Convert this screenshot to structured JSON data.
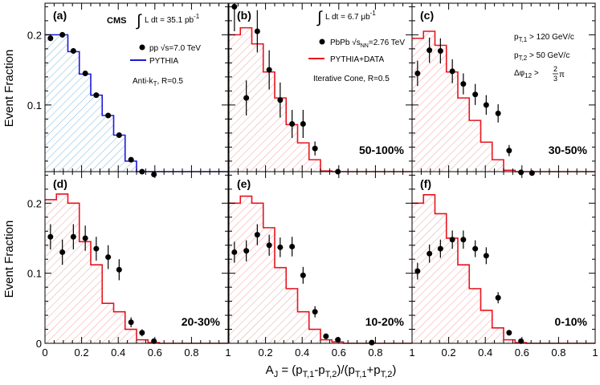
{
  "chart_data": {
    "type": "histogram-grid",
    "ylabel": "Event Fraction",
    "xlabel": "A_J = (p_T,1 - p_T,2)/(p_T,1 + p_T,2)",
    "xlabel_parts": {
      "a": "A",
      "a_sub": "J",
      "eq": " = (p",
      "t1": "T,1",
      "mid": "-p",
      "t2": "T,2",
      "mid2": ")/(p",
      "t3": "T,1",
      "plus": "+p",
      "t4": "T,2",
      "end": ")"
    },
    "xlim": [
      0,
      1
    ],
    "ylim": [
      0,
      0.245
    ],
    "x_ticks": [
      {
        "v": 0,
        "label": "0"
      },
      {
        "v": 0.2,
        "label": "0.2"
      },
      {
        "v": 0.4,
        "label": "0.4"
      },
      {
        "v": 0.6,
        "label": "0.6"
      },
      {
        "v": 0.8,
        "label": "0.8"
      },
      {
        "v": 1,
        "label": "1"
      }
    ],
    "y_ticks_top": [
      {
        "v": 0.1,
        "label": "0.1"
      },
      {
        "v": 0.2,
        "label": "0.2"
      }
    ],
    "y_ticks_bottom": [
      {
        "v": 0,
        "label": "0"
      },
      {
        "v": 0.1,
        "label": "0.1"
      },
      {
        "v": 0.2,
        "label": "0.2"
      }
    ],
    "bin_edges": [
      0,
      0.0625,
      0.125,
      0.1875,
      0.25,
      0.3125,
      0.375,
      0.4375,
      0.5,
      0.5625,
      0.625,
      0.6875,
      0.75,
      0.8125,
      0.875,
      0.9375,
      1.0
    ],
    "panels": [
      {
        "label": "(a)",
        "centrality": "",
        "mc_color": "#1a1ad9",
        "mc_hatch": "blue",
        "mc": [
          0.2,
          0.2,
          0.176,
          0.144,
          0.114,
          0.085,
          0.057,
          0.02,
          0.005,
          0.001,
          0,
          0,
          0,
          0,
          0,
          0
        ],
        "data": [
          {
            "x": 0.03,
            "y": 0.195,
            "err": 0.004
          },
          {
            "x": 0.095,
            "y": 0.2,
            "err": 0.004
          },
          {
            "x": 0.155,
            "y": 0.177,
            "err": 0.004
          },
          {
            "x": 0.22,
            "y": 0.145,
            "err": 0.004
          },
          {
            "x": 0.28,
            "y": 0.114,
            "err": 0.003
          },
          {
            "x": 0.345,
            "y": 0.085,
            "err": 0.003
          },
          {
            "x": 0.405,
            "y": 0.057,
            "err": 0.003
          },
          {
            "x": 0.47,
            "y": 0.022,
            "err": 0.002
          },
          {
            "x": 0.53,
            "y": 0.005,
            "err": 0.001
          },
          {
            "x": 0.595,
            "y": 0.001,
            "err": 0.0005
          }
        ]
      },
      {
        "label": "(b)",
        "centrality": "50-100%",
        "mc_color": "#e8141e",
        "mc_hatch": "red",
        "mc": [
          0.2,
          0.21,
          0.187,
          0.147,
          0.11,
          0.072,
          0.046,
          0.022,
          0.006,
          0.002,
          0,
          0,
          0,
          0,
          0,
          0
        ],
        "data": [
          {
            "x": 0.03,
            "y": 0.24,
            "err": 0.035
          },
          {
            "x": 0.095,
            "y": 0.11,
            "err": 0.025
          },
          {
            "x": 0.155,
            "y": 0.205,
            "err": 0.03
          },
          {
            "x": 0.22,
            "y": 0.15,
            "err": 0.028
          },
          {
            "x": 0.28,
            "y": 0.107,
            "err": 0.025
          },
          {
            "x": 0.345,
            "y": 0.073,
            "err": 0.02
          },
          {
            "x": 0.405,
            "y": 0.073,
            "err": 0.02
          },
          {
            "x": 0.47,
            "y": 0.038,
            "err": 0.01
          },
          {
            "x": 0.595,
            "y": 0.005,
            "err": 0.003
          }
        ]
      },
      {
        "label": "(c)",
        "centrality": "30-50%",
        "mc_color": "#e8141e",
        "mc_hatch": "red",
        "mc": [
          0.195,
          0.205,
          0.185,
          0.147,
          0.11,
          0.078,
          0.047,
          0.022,
          0.007,
          0.002,
          0,
          0,
          0,
          0,
          0,
          0
        ],
        "data": [
          {
            "x": 0.03,
            "y": 0.145,
            "err": 0.018
          },
          {
            "x": 0.095,
            "y": 0.178,
            "err": 0.018
          },
          {
            "x": 0.155,
            "y": 0.177,
            "err": 0.018
          },
          {
            "x": 0.22,
            "y": 0.148,
            "err": 0.017
          },
          {
            "x": 0.28,
            "y": 0.13,
            "err": 0.015
          },
          {
            "x": 0.345,
            "y": 0.115,
            "err": 0.015
          },
          {
            "x": 0.405,
            "y": 0.1,
            "err": 0.014
          },
          {
            "x": 0.47,
            "y": 0.088,
            "err": 0.013
          },
          {
            "x": 0.53,
            "y": 0.035,
            "err": 0.008
          },
          {
            "x": 0.595,
            "y": 0.004,
            "err": 0.003
          },
          {
            "x": 0.655,
            "y": 0.003,
            "err": 0.002
          }
        ]
      },
      {
        "label": "(d)",
        "centrality": "20-30%",
        "mc_color": "#e8141e",
        "mc_hatch": "red",
        "mc": [
          0.205,
          0.213,
          0.2,
          0.145,
          0.112,
          0.057,
          0.045,
          0.02,
          0.005,
          0.001,
          0,
          0,
          0,
          0,
          0,
          0
        ],
        "data": [
          {
            "x": 0.03,
            "y": 0.152,
            "err": 0.018
          },
          {
            "x": 0.095,
            "y": 0.13,
            "err": 0.018
          },
          {
            "x": 0.155,
            "y": 0.152,
            "err": 0.018
          },
          {
            "x": 0.22,
            "y": 0.15,
            "err": 0.018
          },
          {
            "x": 0.28,
            "y": 0.135,
            "err": 0.017
          },
          {
            "x": 0.345,
            "y": 0.123,
            "err": 0.017
          },
          {
            "x": 0.405,
            "y": 0.105,
            "err": 0.015
          },
          {
            "x": 0.47,
            "y": 0.03,
            "err": 0.007
          },
          {
            "x": 0.53,
            "y": 0.015,
            "err": 0.005
          },
          {
            "x": 0.595,
            "y": 0.003,
            "err": 0.002
          }
        ]
      },
      {
        "label": "(e)",
        "centrality": "10-20%",
        "mc_color": "#e8141e",
        "mc_hatch": "red",
        "mc": [
          0.2,
          0.21,
          0.2,
          0.165,
          0.108,
          0.078,
          0.045,
          0.02,
          0.005,
          0.002,
          0,
          0,
          0,
          0,
          0,
          0
        ],
        "data": [
          {
            "x": 0.03,
            "y": 0.13,
            "err": 0.015
          },
          {
            "x": 0.095,
            "y": 0.132,
            "err": 0.015
          },
          {
            "x": 0.155,
            "y": 0.155,
            "err": 0.015
          },
          {
            "x": 0.22,
            "y": 0.14,
            "err": 0.015
          },
          {
            "x": 0.28,
            "y": 0.137,
            "err": 0.014
          },
          {
            "x": 0.345,
            "y": 0.138,
            "err": 0.014
          },
          {
            "x": 0.405,
            "y": 0.097,
            "err": 0.012
          },
          {
            "x": 0.47,
            "y": 0.045,
            "err": 0.008
          },
          {
            "x": 0.53,
            "y": 0.01,
            "err": 0.004
          },
          {
            "x": 0.595,
            "y": 0.005,
            "err": 0.003
          },
          {
            "x": 0.78,
            "y": 0.001,
            "err": 0.001
          }
        ]
      },
      {
        "label": "(f)",
        "centrality": "0-10%",
        "mc_color": "#e8141e",
        "mc_hatch": "red",
        "mc": [
          0.2,
          0.212,
          0.185,
          0.15,
          0.112,
          0.078,
          0.047,
          0.022,
          0.005,
          0.001,
          0,
          0,
          0,
          0,
          0,
          0
        ],
        "data": [
          {
            "x": 0.03,
            "y": 0.103,
            "err": 0.012
          },
          {
            "x": 0.095,
            "y": 0.128,
            "err": 0.013
          },
          {
            "x": 0.155,
            "y": 0.135,
            "err": 0.013
          },
          {
            "x": 0.22,
            "y": 0.148,
            "err": 0.013
          },
          {
            "x": 0.28,
            "y": 0.148,
            "err": 0.013
          },
          {
            "x": 0.345,
            "y": 0.135,
            "err": 0.012
          },
          {
            "x": 0.405,
            "y": 0.125,
            "err": 0.012
          },
          {
            "x": 0.47,
            "y": 0.065,
            "err": 0.008
          },
          {
            "x": 0.53,
            "y": 0.015,
            "err": 0.004
          },
          {
            "x": 0.595,
            "y": 0.003,
            "err": 0.002
          }
        ]
      }
    ],
    "annotations": {
      "a": {
        "cms": "CMS",
        "lumi": "L dt = 35.1 pb",
        "lumi_sup": "-1",
        "integral": "∫",
        "legend_data": "pp ",
        "legend_sqrt": "√s",
        "legend_energy": "=7.0 TeV",
        "legend_mc": "PYTHIA",
        "algo": "Anti-k",
        "algo_sub": "T",
        "algo_r": ", R=0.5"
      },
      "b": {
        "lumi": "L dt = 6.7 μb",
        "lumi_sup": "-1",
        "integral": "∫",
        "legend_data": "PbPb ",
        "legend_sqrt": "√s",
        "legend_sqrt_sub": "NN",
        "legend_energy": "=2.76 TeV",
        "legend_mc": "PYTHIA+DATA",
        "algo": "Iterative Cone, R=0.5"
      },
      "c": {
        "cut1_p": "p",
        "cut1_sub": "T,1",
        "cut1_val": " > 120 GeV/c",
        "cut2_p": "p",
        "cut2_sub": "T,2",
        "cut2_val": " > 50 GeV/c",
        "cut3_phi": "Δφ",
        "cut3_sub": "12",
        "cut3_gt": " > ",
        "cut3_num": "2",
        "cut3_den": "3",
        "cut3_pi": "π"
      }
    }
  }
}
